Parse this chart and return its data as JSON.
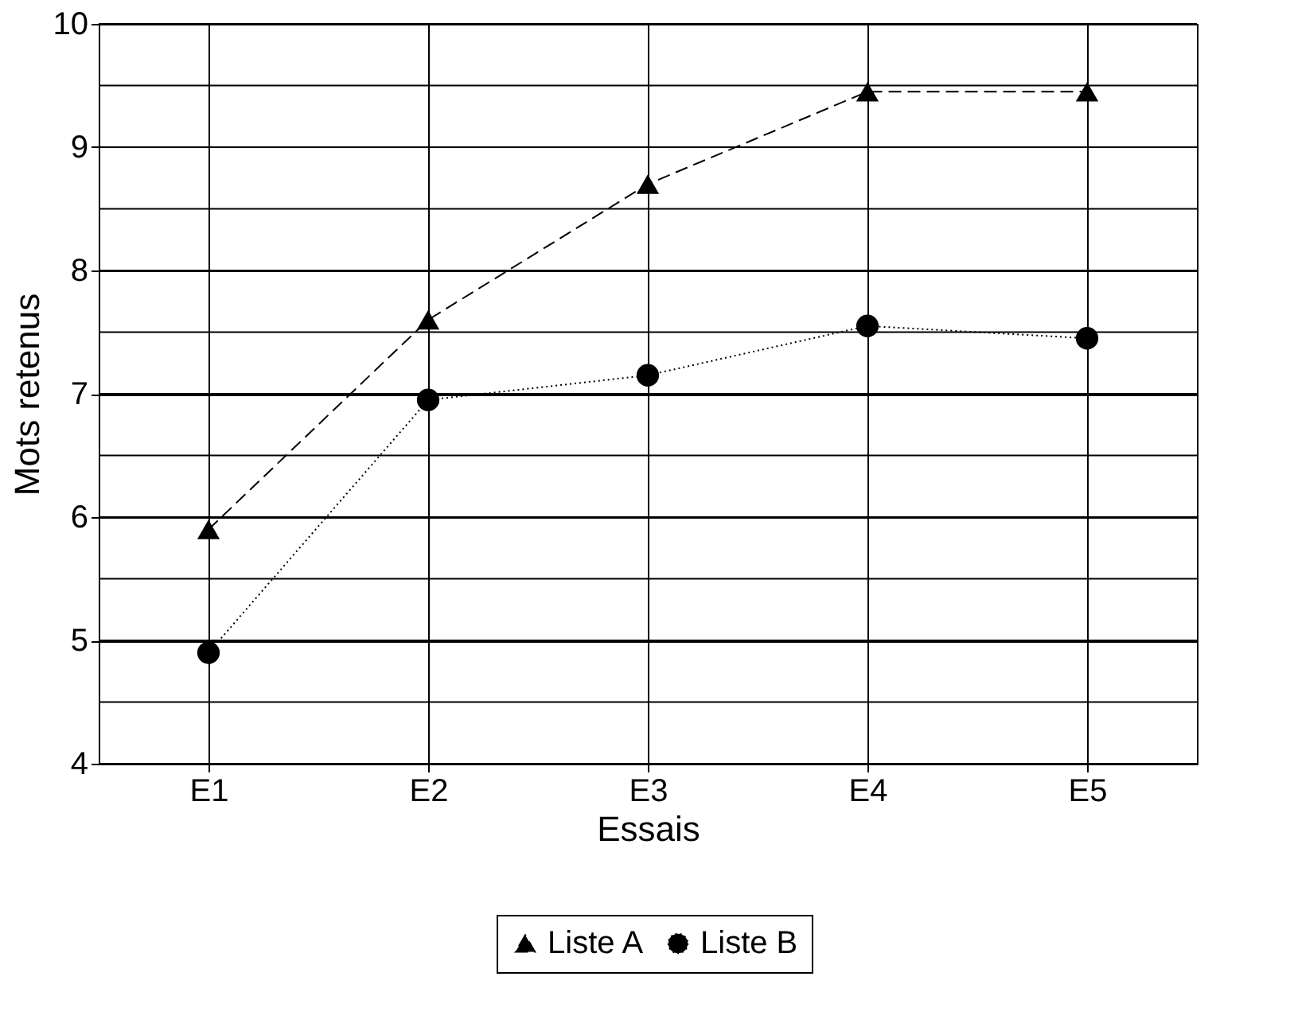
{
  "chart_data": {
    "type": "line",
    "xlabel": "Essais",
    "ylabel": "Mots retenus",
    "categories": [
      "E1",
      "E2",
      "E3",
      "E4",
      "E5"
    ],
    "series": [
      {
        "name": "Liste A",
        "color": "#000000",
        "values": [
          5.9,
          7.6,
          8.7,
          9.45,
          9.45
        ],
        "marker": "triangle",
        "line_style": "dashed"
      },
      {
        "name": "Liste B",
        "color": "#000000",
        "values": [
          4.9,
          6.95,
          7.15,
          7.55,
          7.45
        ],
        "marker": "circle",
        "line_style": "dotted"
      }
    ],
    "ylim": [
      4,
      10
    ],
    "yticks": [
      4,
      {
        "value": 4.5,
        "label": null
      },
      5,
      {
        "value": 5.5,
        "label": null
      },
      6,
      {
        "value": 6.5,
        "label": null
      },
      7,
      {
        "value": 7.5,
        "label": null
      },
      8,
      {
        "value": 8.5,
        "label": null
      },
      9,
      {
        "value": 9.5,
        "label": null
      },
      10
    ],
    "grid": true,
    "legend": "bottom"
  }
}
